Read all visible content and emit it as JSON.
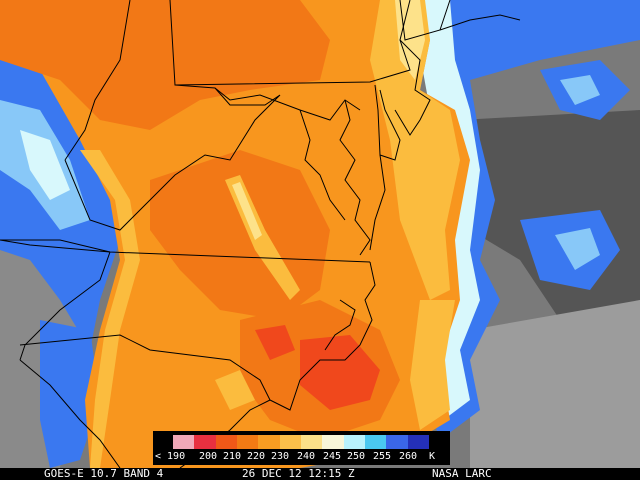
{
  "caption": {
    "satellite_band": "GOES-E 10.7 BAND 4",
    "datetime": "26 DEC 12 12:15 Z",
    "source": "NASA LARC"
  },
  "legend": {
    "labels": [
      "< 190",
      "200",
      "210",
      "220",
      "230",
      "240",
      "245",
      "250",
      "255",
      "260",
      "K"
    ],
    "ramp_colors": [
      "#f0a8b8",
      "#e83040",
      "#f05818",
      "#f37a14",
      "#f89c22",
      "#fbc04a",
      "#fbe088",
      "#f8f6d8",
      "#b8f2fc",
      "#4ac8f0",
      "#3a66e8",
      "#2430b8"
    ]
  },
  "colors": {
    "coldest_cloud": "#f0481c",
    "deep_orange": "#f27816",
    "orange": "#f8961e",
    "light_orange": "#fbbc3e",
    "yellow": "#fde28a",
    "pale_cyan": "#d8f8fc",
    "light_blue": "#88c8f8",
    "blue": "#3a78f0",
    "gray_land": "#7a7a7a",
    "dark_gray": "#4e4e4e",
    "light_gray": "#a8a8a8",
    "boundary_line": "#000000"
  }
}
